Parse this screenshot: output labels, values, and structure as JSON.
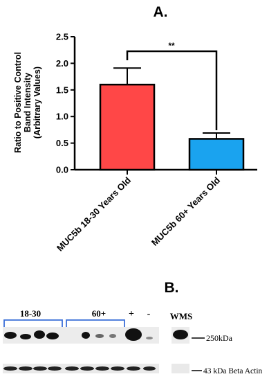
{
  "panel_a_label": "A.",
  "panel_b_label": "B.",
  "chart_data": {
    "type": "bar",
    "title": "",
    "ylabel_lines": [
      "Ratio to Positive Control",
      "Band Intensity",
      "(Arbitrary Values)"
    ],
    "xlabel": "",
    "categories": [
      "MUC5b 18-30 Years Old",
      "MUC5b 60+ Years Old"
    ],
    "values": [
      1.6,
      0.58
    ],
    "errors": [
      0.31,
      0.11
    ],
    "colors": [
      "#ff4747",
      "#1aa3ef"
    ],
    "ylim": [
      0,
      2.5
    ],
    "yticks": [
      0.0,
      0.5,
      1.0,
      1.5,
      2.0,
      2.5
    ],
    "ytick_labels": [
      "0.0",
      "0.5",
      "1.0",
      "1.5",
      "2.0",
      "2.5"
    ],
    "significance": "**",
    "grid": false,
    "legend": "none"
  },
  "blot": {
    "group_labels": [
      "18-30",
      "60+",
      "+",
      "-"
    ],
    "wms_label": "WMS",
    "marker_250": "250kDa",
    "marker_actin": "43 kDa Beta Actin",
    "bracket_color": "#3a6ed8"
  }
}
